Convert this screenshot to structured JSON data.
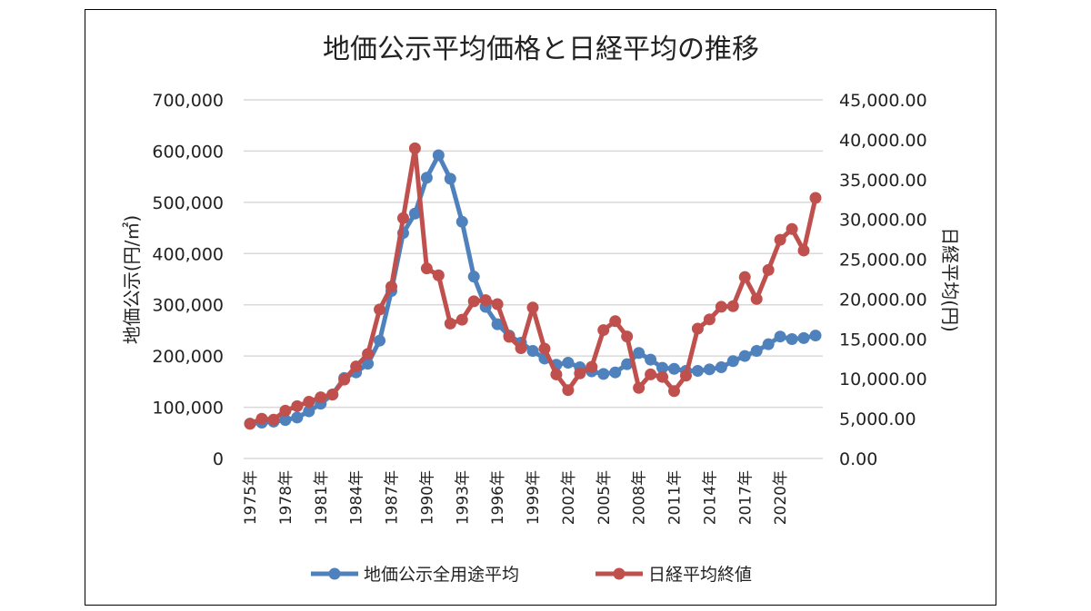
{
  "chart_data": {
    "type": "line",
    "title": "地価公示平均価格と日経平均の推移",
    "ylabel": "地価公示(円/㎡)",
    "y2label": "日経平均(円)",
    "xlabel": "",
    "ylim": [
      0,
      700000
    ],
    "y2lim": [
      0,
      45000
    ],
    "yticks": [
      "0",
      "100,000",
      "200,000",
      "300,000",
      "400,000",
      "500,000",
      "600,000",
      "700,000"
    ],
    "y2ticks": [
      "0.00",
      "5,000.00",
      "10,000.00",
      "15,000.00",
      "20,000.00",
      "25,000.00",
      "30,000.00",
      "35,000.00",
      "40,000.00",
      "45,000.00"
    ],
    "xticklabels": [
      "1975年",
      "1978年",
      "1981年",
      "1984年",
      "1987年",
      "1990年",
      "1993年",
      "1996年",
      "1999年",
      "2002年",
      "2005年",
      "2008年",
      "2011年",
      "2014年",
      "2017年",
      "2020年"
    ],
    "x": [
      1975,
      1976,
      1977,
      1978,
      1979,
      1980,
      1981,
      1982,
      1983,
      1984,
      1985,
      1986,
      1987,
      1988,
      1989,
      1990,
      1991,
      1992,
      1993,
      1994,
      1995,
      1996,
      1997,
      1998,
      1999,
      2000,
      2001,
      2002,
      2003,
      2004,
      2005,
      2006,
      2007,
      2008,
      2009,
      2010,
      2011,
      2012,
      2013,
      2014,
      2015,
      2016,
      2017,
      2018,
      2019,
      2020,
      2021,
      2022,
      2023
    ],
    "grid": true,
    "legend": "bottom",
    "series": [
      {
        "name": "地価公示全用途平均",
        "axis": "left",
        "color": "#4f81bd",
        "values": [
          68000,
          70000,
          72000,
          75000,
          80000,
          92000,
          107000,
          125000,
          157000,
          168000,
          185000,
          230000,
          327000,
          440000,
          478000,
          548000,
          592000,
          546000,
          462000,
          355000,
          296000,
          262000,
          240000,
          226000,
          210000,
          195000,
          183000,
          187000,
          178000,
          170000,
          165000,
          168000,
          184000,
          206000,
          193000,
          177000,
          175000,
          171000,
          171000,
          174000,
          178000,
          190000,
          200000,
          210000,
          223000,
          238000,
          233000,
          235000,
          240000
        ]
      },
      {
        "name": "日経平均終値",
        "axis": "right",
        "color": "#c0504d",
        "values": [
          4359,
          4991,
          4866,
          6001,
          6569,
          7116,
          7682,
          8017,
          9894,
          11543,
          13113,
          18701,
          21564,
          30159,
          38916,
          23849,
          22984,
          16925,
          17417,
          19723,
          19868,
          19361,
          15259,
          13842,
          18934,
          13786,
          10543,
          8579,
          10677,
          11489,
          16111,
          17226,
          15308,
          8860,
          10546,
          10229,
          8455,
          10395,
          16291,
          17451,
          19034,
          19114,
          22765,
          20015,
          23657,
          27444,
          28792,
          26095,
          32700
        ]
      }
    ]
  }
}
